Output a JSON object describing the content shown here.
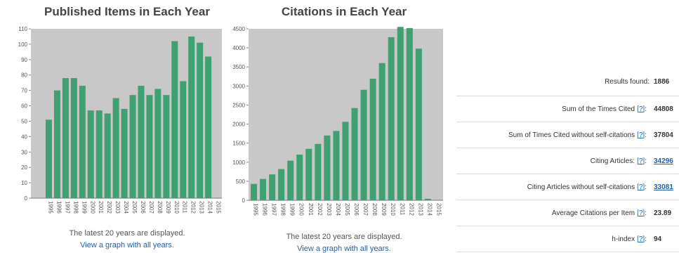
{
  "published_chart": {
    "caption": "The latest 20 years are displayed.",
    "link_text": "View a graph with all years."
  },
  "citations_chart": {
    "caption": "The latest 20 years are displayed.",
    "link_text": "View a graph with all years."
  },
  "stats": {
    "rows": [
      {
        "label": "Results found:",
        "help": "",
        "value": "1886",
        "value_is_link": false
      },
      {
        "label": "Sum of the Times Cited",
        "help": "[?]",
        "value": "44808",
        "value_is_link": false
      },
      {
        "label": "Sum of Times Cited without self-citations",
        "help": "[?]",
        "value": "37804",
        "value_is_link": false
      },
      {
        "label": "Citing Articles:",
        "help": "[?]",
        "value": "34296",
        "value_is_link": true
      },
      {
        "label": "Citing Articles without self-citations",
        "help": "[?]",
        "value": "33081",
        "value_is_link": true
      },
      {
        "label": "Average Citations per Item",
        "help": "[?]",
        "value": "23.89",
        "value_is_link": false
      },
      {
        "label": "h-index",
        "help": "[?]",
        "value": "94",
        "value_is_link": false
      }
    ]
  },
  "colors": {
    "bar": "#3fa172",
    "plot_bg": "#c8c8c8",
    "link": "#1f5fa8"
  },
  "chart_data": [
    {
      "type": "bar",
      "title": "Published Items in Each Year",
      "xlabel": "",
      "ylabel": "",
      "categories": [
        "1995",
        "1996",
        "1997",
        "1998",
        "1999",
        "2000",
        "2001",
        "2002",
        "2003",
        "2004",
        "2005",
        "2006",
        "2007",
        "2008",
        "2009",
        "2010",
        "2011",
        "2012",
        "2013",
        "2014",
        "2015"
      ],
      "values": [
        51,
        70,
        78,
        78,
        73,
        57,
        57,
        55,
        65,
        58,
        67,
        73,
        67,
        71,
        67,
        102,
        76,
        105,
        101,
        92,
        0
      ],
      "ylim": [
        0,
        110
      ],
      "yticks": [
        "0",
        "10",
        "20",
        "30",
        "40",
        "50",
        "60",
        "70",
        "80",
        "90",
        "100",
        "110"
      ],
      "grid": false
    },
    {
      "type": "bar",
      "title": "Citations in Each Year",
      "xlabel": "",
      "ylabel": "",
      "categories": [
        "1995",
        "1996",
        "1997",
        "1998",
        "1999",
        "2000",
        "2001",
        "2002",
        "2003",
        "2004",
        "2005",
        "2006",
        "2007",
        "2008",
        "2009",
        "2010",
        "2011",
        "2012",
        "2013",
        "2014",
        "2015"
      ],
      "values": [
        430,
        560,
        680,
        820,
        1040,
        1200,
        1350,
        1480,
        1700,
        1820,
        2060,
        2420,
        2900,
        3190,
        3600,
        4280,
        4550,
        4520,
        3980,
        40,
        0
      ],
      "ylim": [
        0,
        4500
      ],
      "yticks": [
        "0",
        "500",
        "1000",
        "1500",
        "2000",
        "2500",
        "3000",
        "3500",
        "4000",
        "4500"
      ],
      "grid": false
    }
  ]
}
